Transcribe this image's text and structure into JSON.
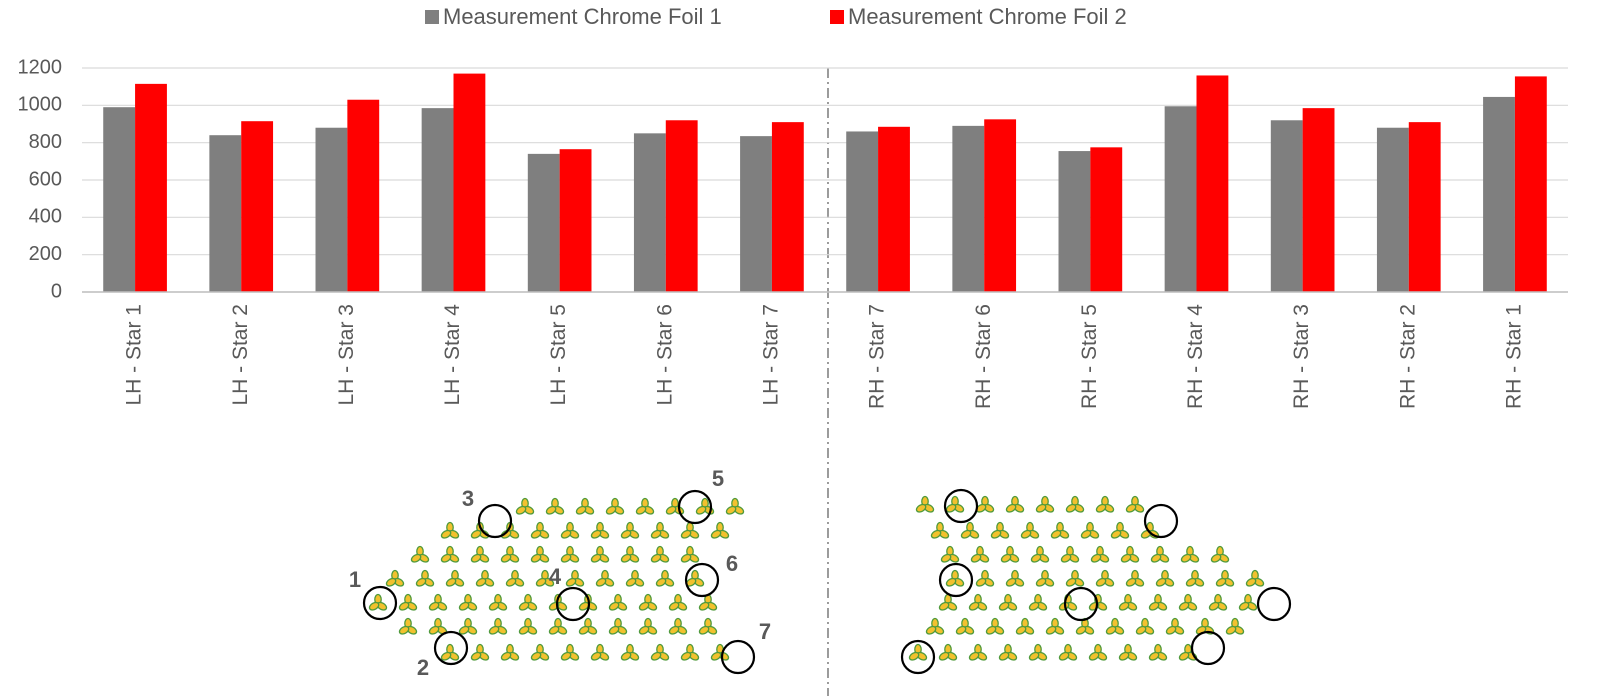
{
  "chart_data": {
    "type": "bar",
    "categories": [
      "LH - Star 1",
      "LH - Star 2",
      "LH - Star 3",
      "LH - Star 4",
      "LH - Star 5",
      "LH - Star 6",
      "LH - Star 7",
      "RH - Star 7",
      "RH - Star 6",
      "RH - Star 5",
      "RH - Star 4",
      "RH - Star 3",
      "RH - Star 2",
      "RH - Star 1"
    ],
    "series": [
      {
        "name": "Measurement Chrome Foil 1",
        "color": "#7f7f7f",
        "values": [
          990,
          840,
          880,
          985,
          740,
          850,
          835,
          860,
          890,
          755,
          995,
          920,
          880,
          1045
        ]
      },
      {
        "name": "Measurement Chrome Foil 2",
        "color": "#ff0000",
        "values": [
          1115,
          915,
          1030,
          1170,
          765,
          920,
          910,
          885,
          925,
          775,
          1160,
          985,
          910,
          1155
        ]
      }
    ],
    "ylim": [
      0,
      1200
    ],
    "yticks": [
      0,
      200,
      400,
      600,
      800,
      1000,
      1200
    ],
    "grid": true,
    "legend": "top"
  },
  "diagram": {
    "labels": [
      "1",
      "2",
      "3",
      "4",
      "5",
      "6",
      "7"
    ]
  }
}
